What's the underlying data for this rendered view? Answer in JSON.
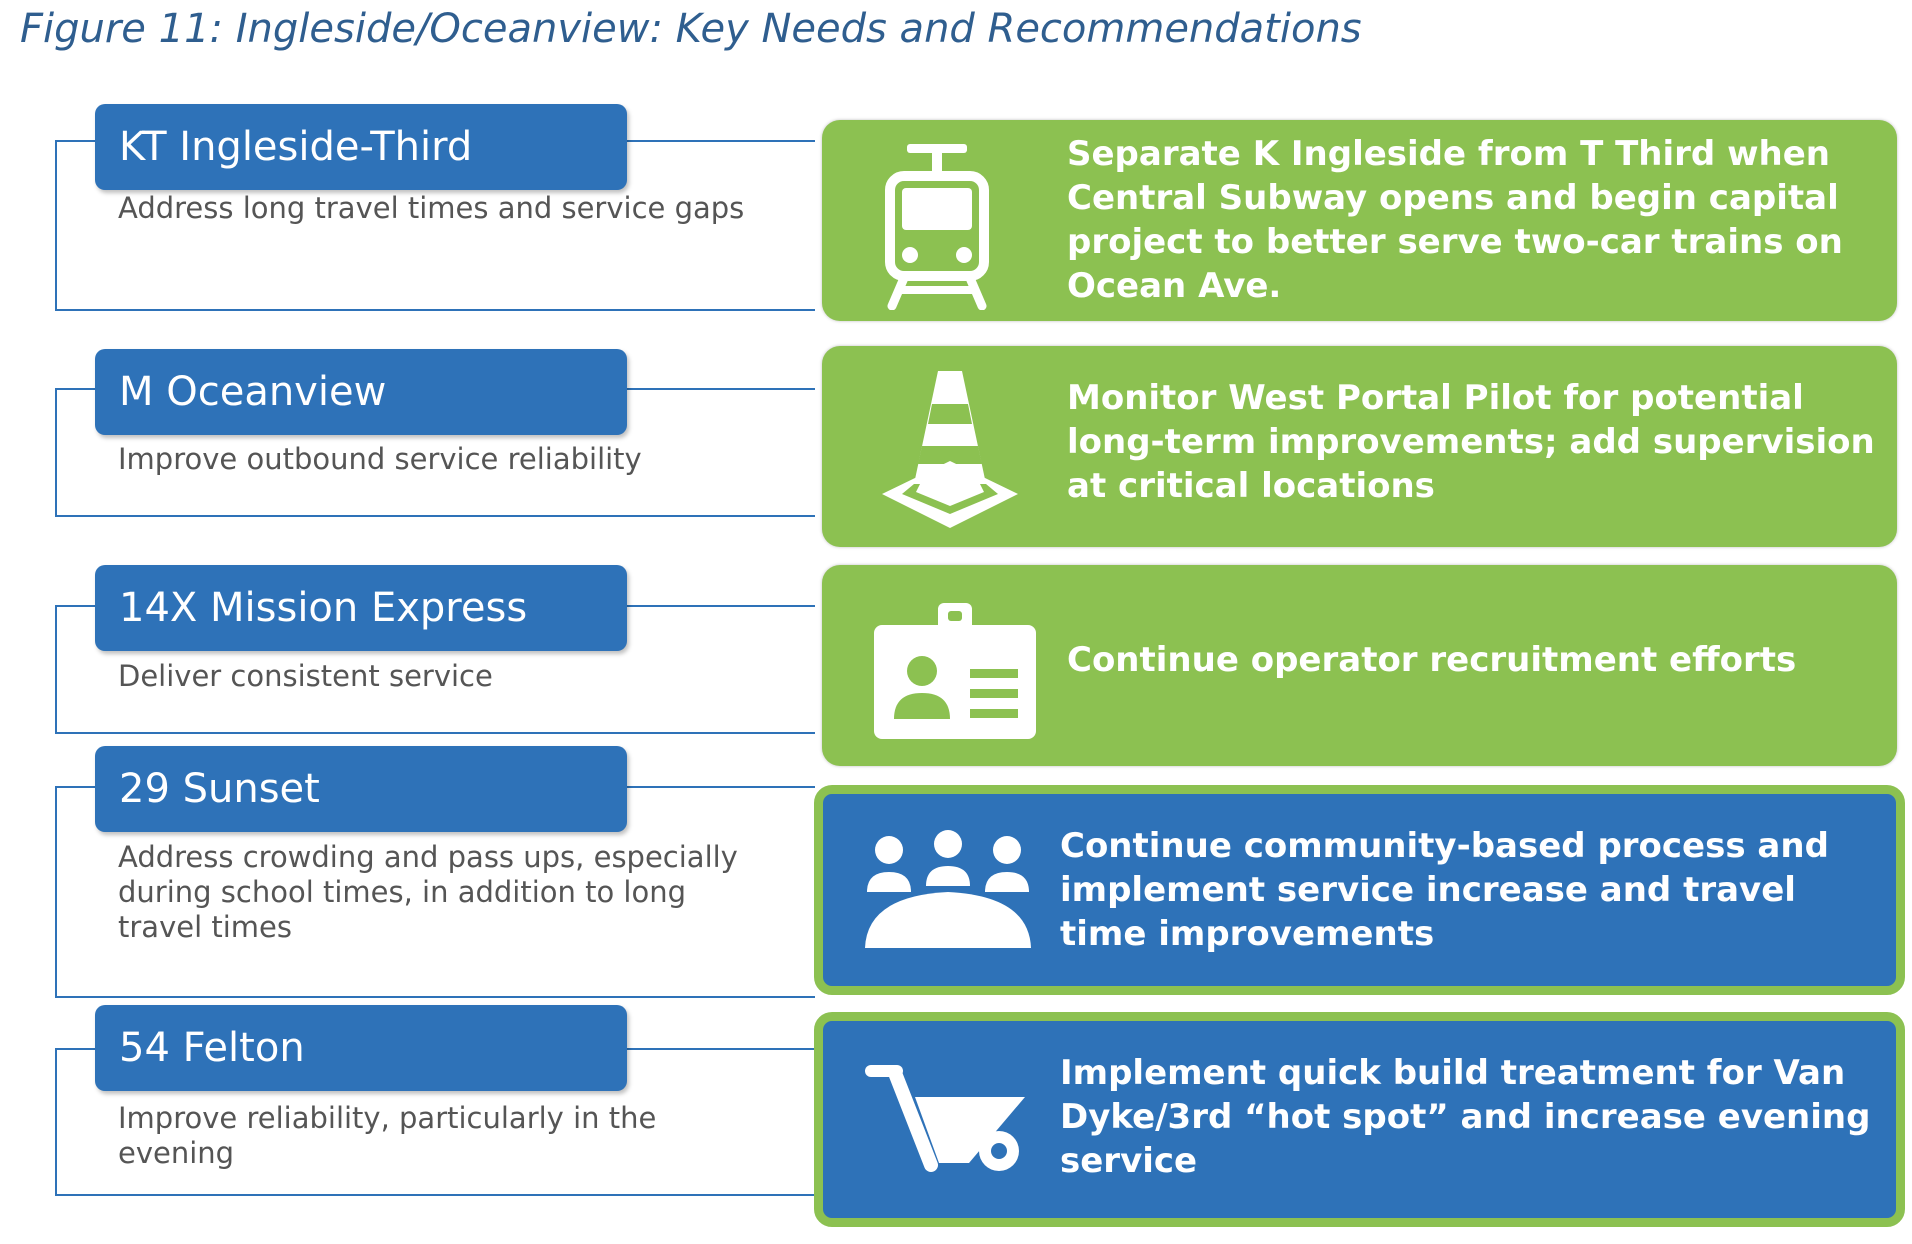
{
  "figure": {
    "title": "Figure 11: Ingleside/Oceanview: Key Needs and Recommendations"
  },
  "rows": [
    {
      "route": "KT Ingleside-Third",
      "need": "Address long travel times and service gaps",
      "recommendation": "Separate K Ingleside from T Third when Central Subway opens and begin capital project to better serve two-car trains on Ocean Ave.",
      "icon": "train-icon",
      "style": "green"
    },
    {
      "route": "M Oceanview",
      "need": "Improve outbound service reliability",
      "recommendation": "Monitor West Portal Pilot for potential long-term improvements; add supervision at critical locations",
      "icon": "traffic-cone-icon",
      "style": "green"
    },
    {
      "route": "14X Mission Express",
      "need": "Deliver consistent service",
      "recommendation": "Continue operator recruitment efforts",
      "icon": "id-badge-icon",
      "style": "green"
    },
    {
      "route": "29 Sunset",
      "need": "Address crowding and pass ups, especially during school times, in addition to long travel times",
      "recommendation": "Continue community-based process and implement service increase and travel time improvements",
      "icon": "community-meeting-icon",
      "style": "blue"
    },
    {
      "route": "54 Felton",
      "need": "Improve reliability, particularly in the evening",
      "recommendation": "Implement quick build treatment for Van Dyke/3rd “hot spot” and increase evening service",
      "icon": "wheelbarrow-icon",
      "style": "blue"
    }
  ],
  "colors": {
    "route_blue": "#2e72b8",
    "recommendation_green": "#8cc151",
    "title_blue": "#2f5e8f"
  }
}
